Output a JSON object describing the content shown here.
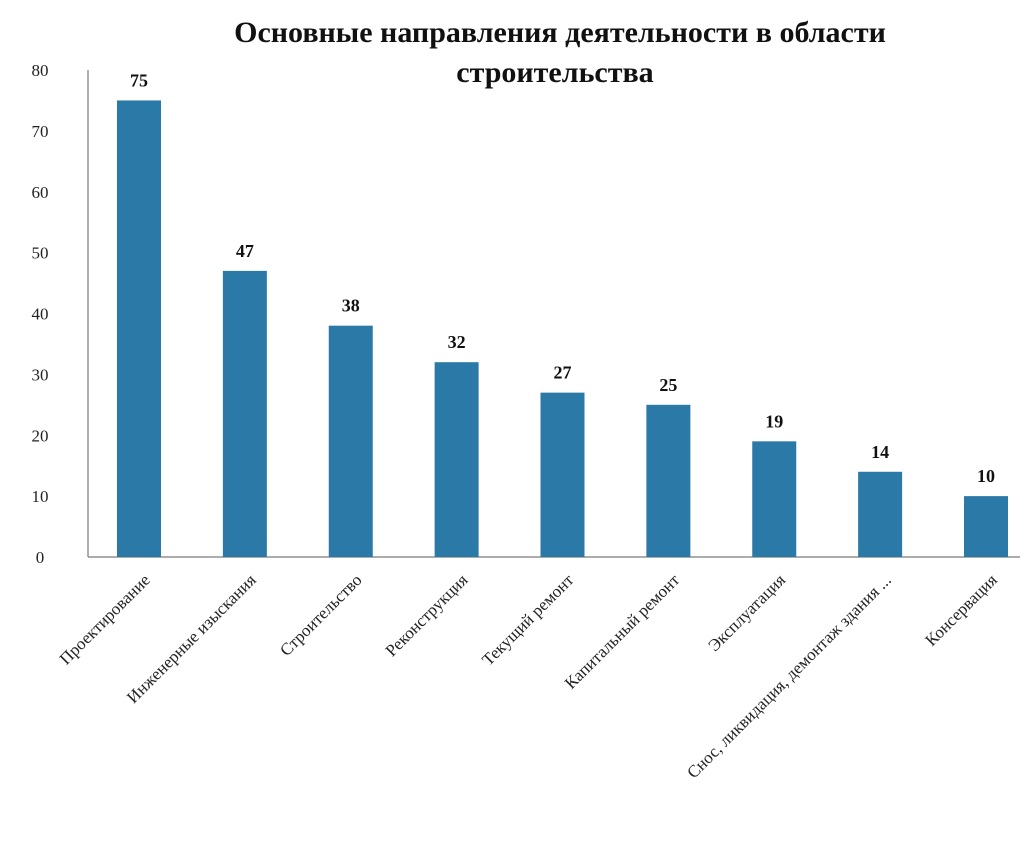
{
  "chart_data": {
    "type": "bar",
    "title_lines": [
      "Основные направления деятельности в области",
      "строительства"
    ],
    "categories": [
      "Проектирование",
      "Инженерные изыскания",
      "Строительство",
      "Реконструкция",
      "Текущий ремонт",
      "Капитальный ремонт",
      "Эксплуатация",
      "Снос, ликвидация,  демонтаж здания ...",
      "Консервация"
    ],
    "values": [
      75,
      47,
      38,
      32,
      27,
      25,
      19,
      14,
      10
    ],
    "y_ticks": [
      "0",
      "10",
      "20",
      "30",
      "40",
      "50",
      "60",
      "70",
      "80"
    ],
    "ylim": [
      0,
      80
    ],
    "xlabel": "",
    "ylabel": "",
    "grid": false,
    "legend": "none",
    "bar_color": "#2a79a6"
  }
}
